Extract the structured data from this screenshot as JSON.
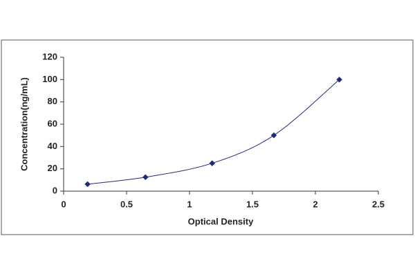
{
  "chart_data": {
    "type": "scatter",
    "x_label": "Optical Density",
    "y_label": "Concentration(ng/mL)",
    "x": [
      0.19,
      0.65,
      1.18,
      1.67,
      2.19
    ],
    "values": [
      6.25,
      12.5,
      25,
      50,
      100
    ],
    "color": "#1f2a7a",
    "trend_line": true,
    "xlim": [
      0,
      2.5
    ],
    "xticks": [
      0,
      0.5,
      1,
      1.5,
      2,
      2.5
    ],
    "ylim": [
      0,
      120
    ],
    "yticks": [
      0,
      20,
      40,
      60,
      80,
      100,
      120
    ],
    "grid": false
  }
}
